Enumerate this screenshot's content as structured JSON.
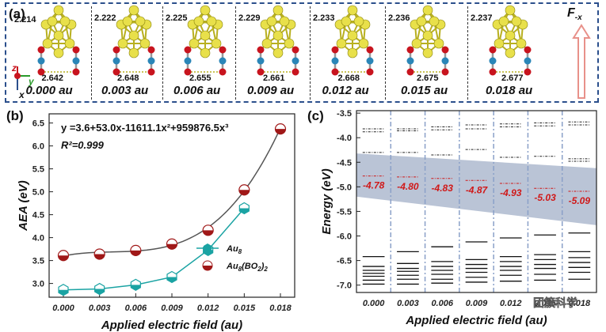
{
  "panel_a": {
    "label": "(a)",
    "axes": {
      "z": "z",
      "y": "y",
      "x": "x"
    },
    "force_label": "F",
    "force_subscript": "-x",
    "structures": [
      {
        "top_bond": "2.214",
        "bottom_bond": "2.642",
        "field": "0.000 au"
      },
      {
        "top_bond": "2.222",
        "bottom_bond": "2.648",
        "field": "0.003 au"
      },
      {
        "top_bond": "2.225",
        "bottom_bond": "2.655",
        "field": "0.006 au"
      },
      {
        "top_bond": "2.229",
        "bottom_bond": "2.661",
        "field": "0.009 au"
      },
      {
        "top_bond": "2.233",
        "bottom_bond": "2.668",
        "field": "0.012 au"
      },
      {
        "top_bond": "2.236",
        "bottom_bond": "2.675",
        "field": "0.015 au"
      },
      {
        "top_bond": "2.237",
        "bottom_bond": "2.677",
        "field": "0.018 au"
      }
    ],
    "colors": {
      "gold": "#e8e04a",
      "boron": "#2a86b8",
      "oxygen": "#c8141e",
      "border": "#2b4f8c"
    }
  },
  "chart_data": [
    {
      "panel": "(b)",
      "type": "line",
      "title": "",
      "xlabel": "Applied electric field (au)",
      "ylabel": "AEA (eV)",
      "x": [
        0.0,
        0.003,
        0.006,
        0.009,
        0.012,
        0.015,
        0.018
      ],
      "x_tick_labels": [
        "0.000",
        "0.003",
        "0.006",
        "0.009",
        "0.012",
        "0.015",
        "0.018"
      ],
      "y_tick_labels": [
        "3.0",
        "3.5",
        "4.0",
        "4.5",
        "5.0",
        "5.5",
        "6.0",
        "6.5"
      ],
      "ylim": [
        2.7,
        6.7
      ],
      "grid": false,
      "annotation_equation": "y =3.6+53.0x-11611.1x²+959876.5x³",
      "annotation_r2": "R²=0.999",
      "legend_position": "bottom-right",
      "series": [
        {
          "name": "Au8",
          "name_main": "Au",
          "name_sub": "8",
          "name_tail": "",
          "color": "#1aa3a3",
          "values": [
            2.86,
            2.88,
            2.97,
            3.14,
            3.73,
            4.64,
            null
          ]
        },
        {
          "name": "Au8(BO2)2",
          "name_main": "Au",
          "name_sub": "8",
          "name_tail": "(BO",
          "name_sub2": "2",
          "name_end": ")",
          "name_sub3": "2",
          "color": "#a01818",
          "values": [
            3.61,
            3.64,
            3.72,
            3.86,
            4.16,
            5.04,
            6.37
          ]
        }
      ],
      "fit_curve_color": "#555555"
    },
    {
      "panel": "(c)",
      "type": "energy-levels",
      "xlabel": "Applied electric field (au)",
      "ylabel": "Energy (eV)",
      "x_tick_labels": [
        "0.000",
        "0.003",
        "0.006",
        "0.009",
        "0.012",
        "0.015",
        "0.018"
      ],
      "y_tick_labels": [
        "-3.5",
        "-4.0",
        "-4.5",
        "-5.0",
        "-5.5",
        "-6.0",
        "-6.5",
        "-7.0"
      ],
      "ylim": [
        -7.15,
        -3.45
      ],
      "highlighted_levels": [
        -4.78,
        -4.8,
        -4.83,
        -4.87,
        -4.93,
        -5.03,
        -5.09
      ],
      "highlighted_labels": [
        "-4.78",
        "-4.80",
        "-4.83",
        "-4.87",
        "-4.93",
        "-5.03",
        "-5.09"
      ],
      "band_color": "#8294b4",
      "label_color": "#d01818",
      "unoccupied_levels": [
        [
          -3.82,
          -3.88,
          -4.3
        ],
        [
          -3.82,
          -3.86,
          -4.3
        ],
        [
          -3.78,
          -3.84,
          -4.35
        ],
        [
          -3.74,
          -3.82,
          -4.24
        ],
        [
          -3.72,
          -3.78,
          -4.4
        ],
        [
          -3.7,
          -3.76,
          -4.38
        ],
        [
          -3.68,
          -3.74,
          -4.43,
          -4.48
        ]
      ],
      "occupied_levels": [
        [
          -6.42,
          -6.62,
          -6.7,
          -6.76,
          -6.82,
          -6.9,
          -6.98
        ],
        [
          -6.32,
          -6.56,
          -6.66,
          -6.72,
          -6.8,
          -6.88,
          -6.98
        ],
        [
          -6.22,
          -6.52,
          -6.62,
          -6.7,
          -6.78,
          -6.88,
          -6.96
        ],
        [
          -6.12,
          -6.48,
          -6.58,
          -6.66,
          -6.74,
          -6.84,
          -6.94
        ],
        [
          -6.04,
          -6.42,
          -6.52,
          -6.62,
          -6.7,
          -6.8,
          -6.92
        ],
        [
          -5.98,
          -6.38,
          -6.48,
          -6.58,
          -6.66,
          -6.78,
          -6.9
        ],
        [
          -5.94,
          -6.32,
          -6.44,
          -6.54,
          -6.64,
          -6.74,
          -6.88
        ]
      ],
      "watermark": "团簇科学"
    }
  ]
}
